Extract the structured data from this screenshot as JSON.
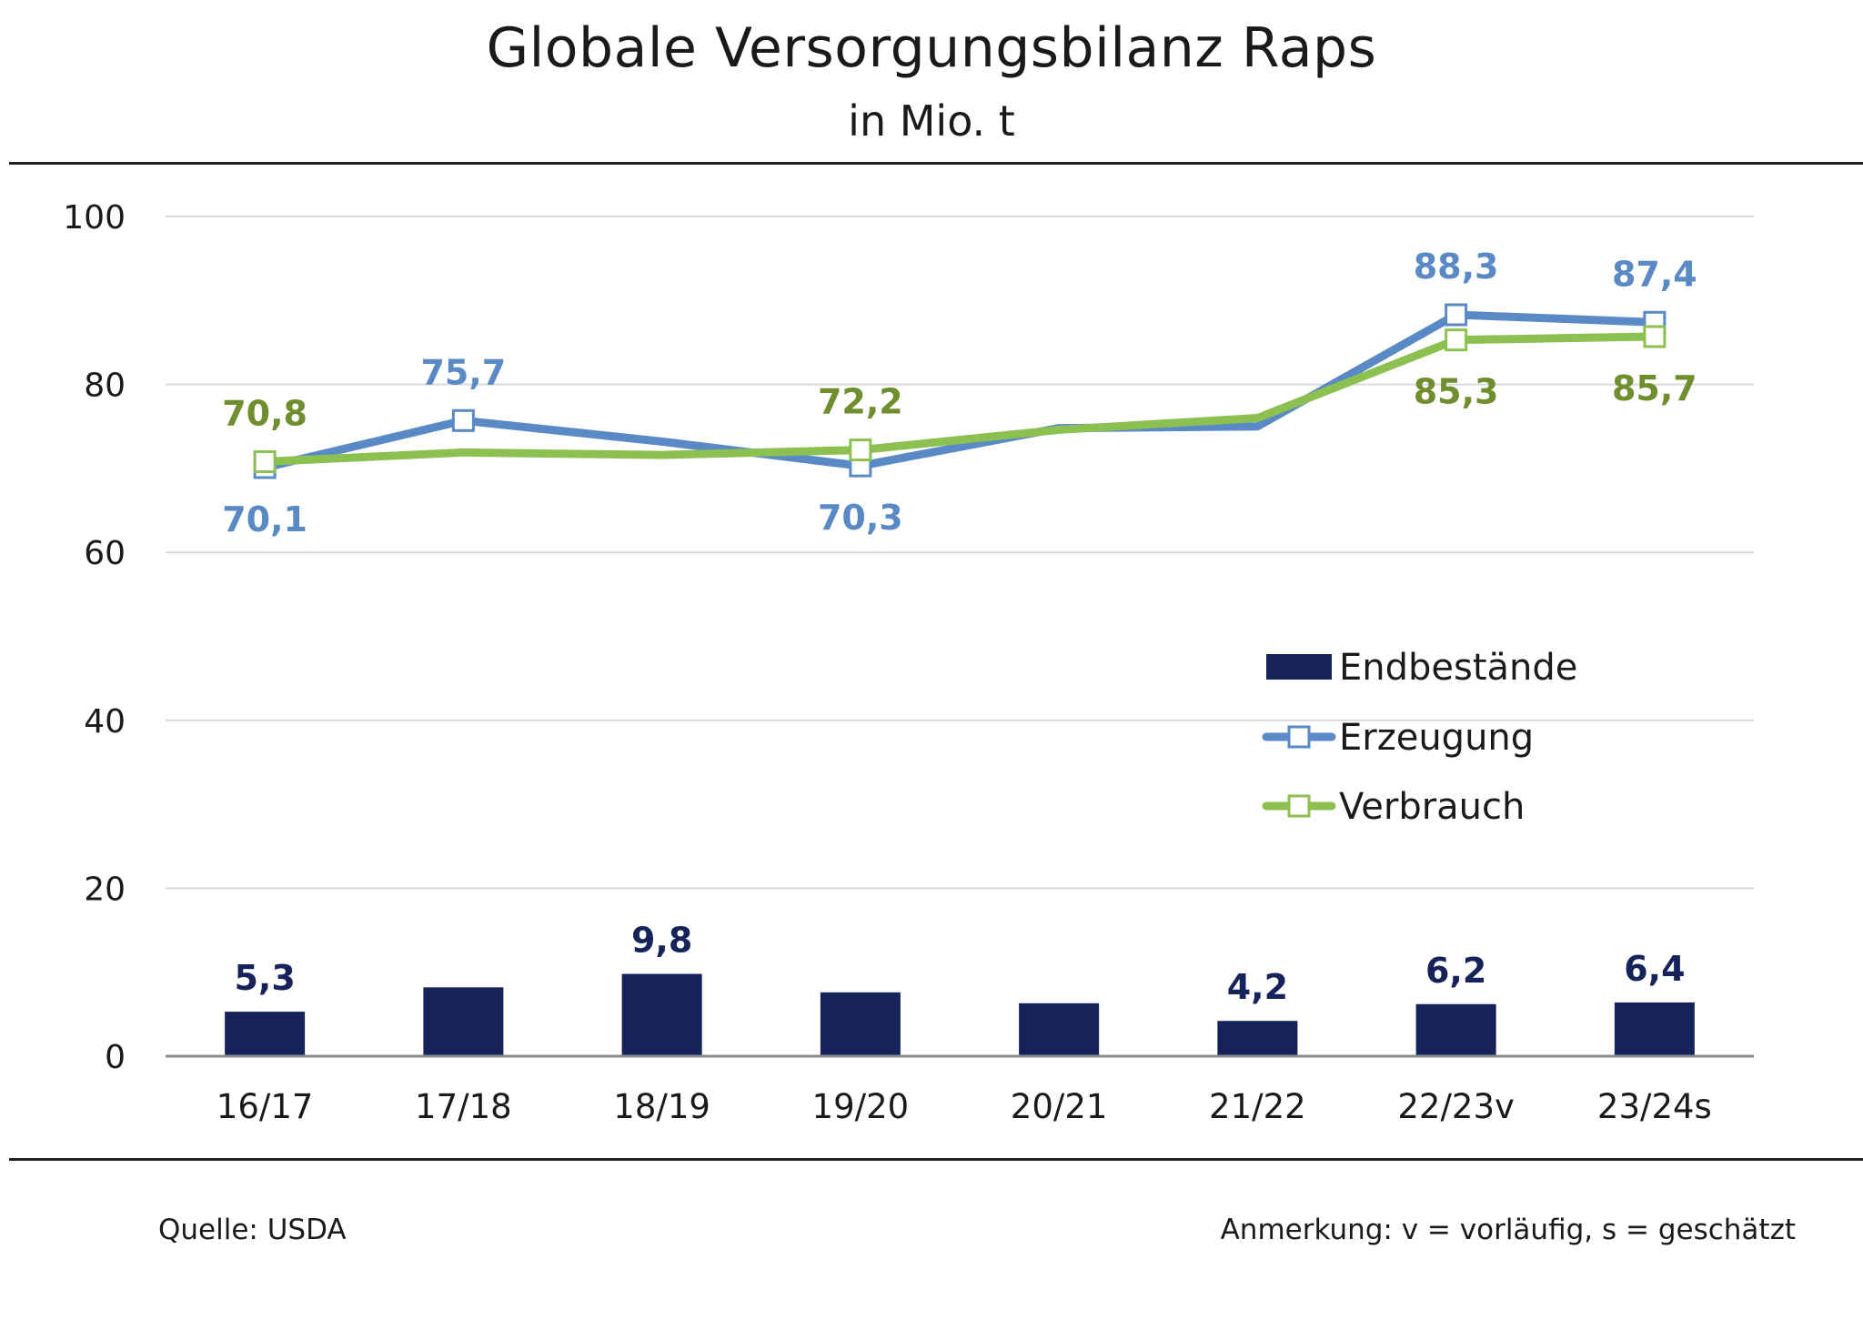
{
  "header": {
    "title": "Globale Versorgungsbilanz Raps",
    "subtitle": "in Mio. t"
  },
  "footer": {
    "source": "Quelle: USDA",
    "note": "Anmerkung: v = vorläufig, s = geschätzt"
  },
  "colors": {
    "endbestaende": "#16235a",
    "erzeugung": "#5a8ac6",
    "verbrauch": "#8cc152",
    "erzeugung_label": "#5a8ac6",
    "verbrauch_label": "#6f8f2e",
    "grid": "#d9d9d9",
    "axis": "#8c8c8c"
  },
  "chart_data": {
    "type": "bar",
    "title": "Globale Versorgungsbilanz Raps",
    "subtitle": "in Mio. t",
    "categories": [
      "16/17",
      "17/18",
      "18/19",
      "19/20",
      "20/21",
      "21/22",
      "22/23v",
      "23/24s"
    ],
    "ylim": [
      0,
      100
    ],
    "yticks": [
      0,
      20,
      40,
      60,
      80,
      100
    ],
    "grid": true,
    "legend_position": "right",
    "series": [
      {
        "name": "Endbestände",
        "kind": "bar",
        "values": [
          5.3,
          8.2,
          9.8,
          7.6,
          6.3,
          4.2,
          6.2,
          6.4
        ],
        "labels": [
          "5,3",
          "",
          "9,8",
          "",
          "",
          "4,2",
          "6,2",
          "6,4"
        ]
      },
      {
        "name": "Erzeugung",
        "kind": "line",
        "values": [
          70.1,
          75.7,
          73.2,
          70.3,
          74.8,
          75.0,
          88.3,
          87.4
        ],
        "labels": [
          "70,1",
          "75,7",
          "",
          "70,3",
          "",
          "",
          "88,3",
          "87,4"
        ],
        "markers": [
          true,
          true,
          false,
          true,
          false,
          false,
          true,
          true
        ],
        "label_side": [
          "below",
          "above",
          "",
          "below",
          "",
          "",
          "above",
          "above"
        ]
      },
      {
        "name": "Verbrauch",
        "kind": "line",
        "values": [
          70.8,
          71.9,
          71.6,
          72.2,
          74.6,
          76.0,
          85.3,
          85.7
        ],
        "labels": [
          "70,8",
          "",
          "",
          "72,2",
          "",
          "",
          "85,3",
          "85,7"
        ],
        "markers": [
          true,
          false,
          false,
          true,
          false,
          false,
          true,
          true
        ],
        "label_side": [
          "above",
          "",
          "",
          "above",
          "",
          "",
          "below",
          "below"
        ]
      }
    ]
  }
}
